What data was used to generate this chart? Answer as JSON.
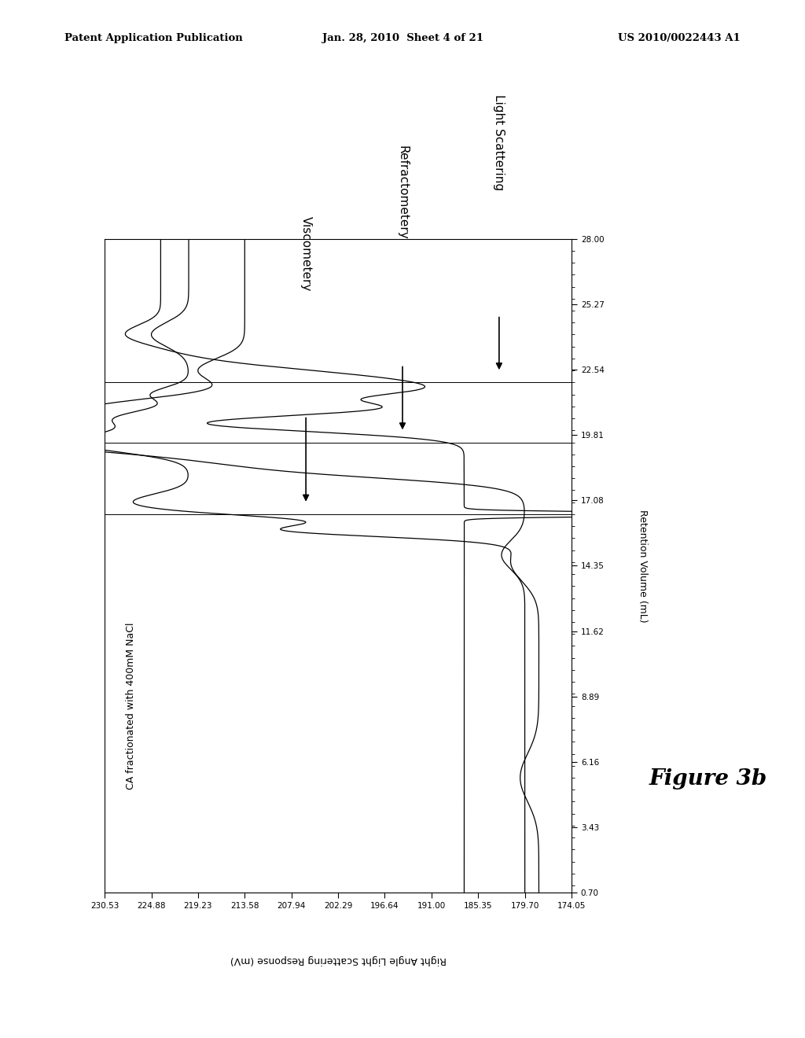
{
  "title_left": "Patent Application Publication",
  "title_mid": "Jan. 28, 2010  Sheet 4 of 21",
  "title_right": "US 2010/0022443 A1",
  "figure_label": "Figure 3b",
  "xlabel_rotated": "Retention Volume (mL)",
  "ylabel_rotated": "Right Angle Light Scattering Response (mV)",
  "x_ticks": [
    0.7,
    3.43,
    6.16,
    8.89,
    11.62,
    14.35,
    17.08,
    19.81,
    22.54,
    25.27,
    28.0
  ],
  "y_ticks": [
    174.05,
    179.7,
    185.35,
    191.0,
    196.64,
    202.29,
    207.94,
    213.58,
    219.23,
    224.88,
    230.53
  ],
  "annotations": [
    "Viscometery",
    "Refractometery",
    "Light Scattering"
  ],
  "annotation_rv": [
    16.5,
    19.5,
    22.0
  ],
  "text_inside": "CA fractionated with 400mM NaCl",
  "bg_color": "#ffffff",
  "line_color": "#000000",
  "fig_width": 10.24,
  "fig_height": 13.2,
  "dpi": 100
}
